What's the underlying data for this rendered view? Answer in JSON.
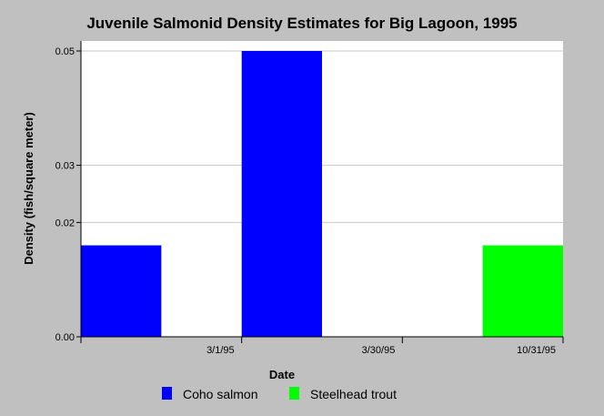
{
  "chart_data": {
    "type": "bar",
    "title": "Juvenile Salmonid Density Estimates for Big Lagoon, 1995",
    "xlabel": "Date",
    "ylabel": "Density (fish/square meter)",
    "categories": [
      "3/1/95",
      "3/30/95",
      "10/31/95"
    ],
    "series": [
      {
        "name": "Coho salmon",
        "color": "#0000ff",
        "values": [
          0.016,
          0.05,
          0
        ]
      },
      {
        "name": "Steelhead trout",
        "color": "#00ff00",
        "values": [
          0,
          0,
          0.016
        ]
      }
    ],
    "yticks": [
      {
        "value": 0.0,
        "label": "0.00"
      },
      {
        "value": 0.02,
        "label": "0.02"
      },
      {
        "value": 0.03,
        "label": "0.03"
      },
      {
        "value": 0.05,
        "label": "0.05"
      }
    ],
    "ylim": [
      0,
      0.05
    ],
    "grid": true,
    "legend_position": "bottom"
  }
}
